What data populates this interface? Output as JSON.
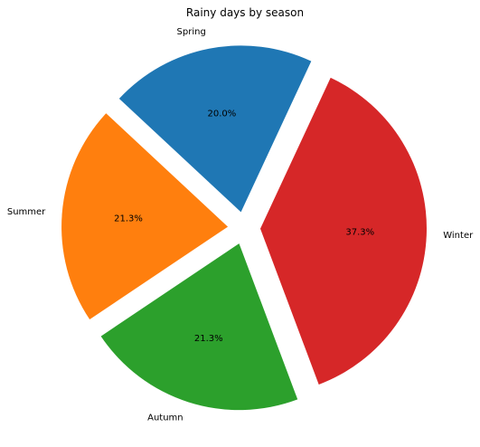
{
  "chart_data": {
    "type": "pie",
    "title": "Rainy days by season",
    "categories": [
      "Spring",
      "Summer",
      "Autumn",
      "Winter"
    ],
    "values": [
      20.0,
      21.3,
      21.3,
      37.3
    ],
    "percent_labels": [
      "20.0%",
      "21.3%",
      "21.3%",
      "37.3%"
    ],
    "colors": [
      "#1f77b4",
      "#ff7f0e",
      "#2ca02c",
      "#d62728"
    ],
    "exploded": true,
    "start_angle_deg": 65,
    "direction": "counterclockwise",
    "legend": "none"
  }
}
